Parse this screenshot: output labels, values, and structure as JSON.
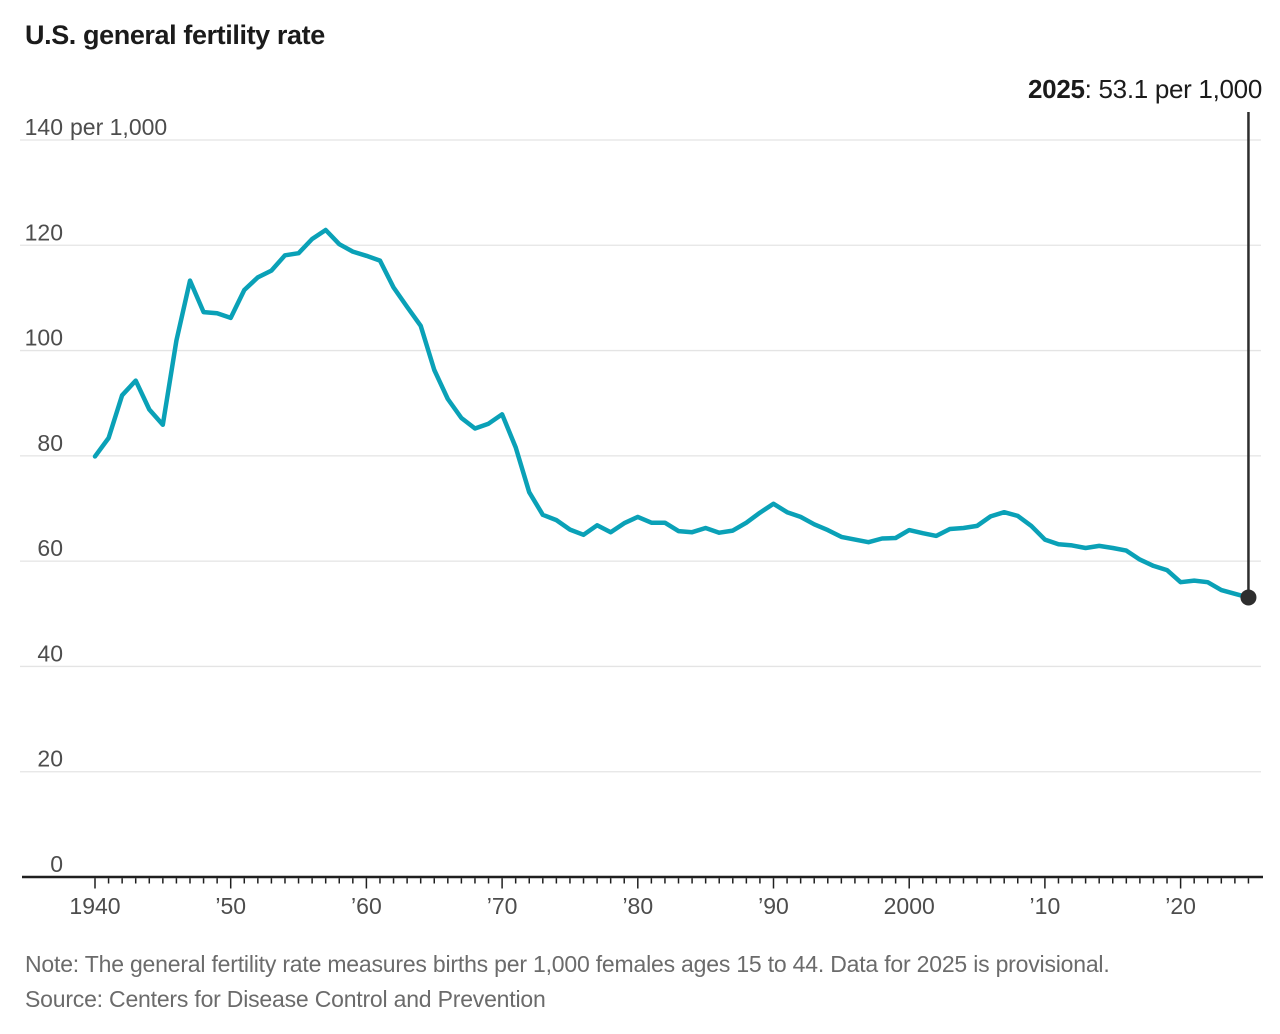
{
  "title": "U.S. general fertility rate",
  "annotation": {
    "year": "2025",
    "rest": ": 53.1 per 1,000"
  },
  "note": "Note: The general fertility rate measures births per 1,000 females ages 15 to 44. Data for 2025 is provisional.",
  "source": "Source: Centers for Disease Control and Prevention",
  "colors": {
    "line": "#0aa1b7",
    "marker": "#2e2e2e",
    "annotation_line": "#2e2e2e",
    "grid": "#e4e4e4",
    "axis": "#1f1f1f",
    "tick_label": "#4d4d4d",
    "title_text": "#1b1b1b",
    "note_text": "#6b6b6b"
  },
  "chart_data": {
    "type": "line",
    "title": "U.S. general fertility rate",
    "ylabel": "per 1,000",
    "ylim": [
      0,
      140
    ],
    "ytick_values": [
      0,
      20,
      40,
      60,
      80,
      100,
      120,
      140
    ],
    "ytick_top_unit": "per 1,000",
    "xlim": [
      1940,
      2025
    ],
    "grid": "horizontal",
    "legend_position": "none",
    "xticks": [
      {
        "year": 1940,
        "label": "1940"
      },
      {
        "year": 1950,
        "label": "’50"
      },
      {
        "year": 1960,
        "label": "’60"
      },
      {
        "year": 1970,
        "label": "’70"
      },
      {
        "year": 1980,
        "label": "’80"
      },
      {
        "year": 1990,
        "label": "’90"
      },
      {
        "year": 2000,
        "label": "2000"
      },
      {
        "year": 2010,
        "label": "’10"
      },
      {
        "year": 2020,
        "label": "’20"
      }
    ],
    "minor_tick_every_year": true,
    "endpoint": {
      "year": 2025,
      "value": 53.1,
      "label": "2025: 53.1 per 1,000"
    },
    "x": [
      1940,
      1941,
      1942,
      1943,
      1944,
      1945,
      1946,
      1947,
      1948,
      1949,
      1950,
      1951,
      1952,
      1953,
      1954,
      1955,
      1956,
      1957,
      1958,
      1959,
      1960,
      1961,
      1962,
      1963,
      1964,
      1965,
      1966,
      1967,
      1968,
      1969,
      1970,
      1971,
      1972,
      1973,
      1974,
      1975,
      1976,
      1977,
      1978,
      1979,
      1980,
      1981,
      1982,
      1983,
      1984,
      1985,
      1986,
      1987,
      1988,
      1989,
      1990,
      1991,
      1992,
      1993,
      1994,
      1995,
      1996,
      1997,
      1998,
      1999,
      2000,
      2001,
      2002,
      2003,
      2004,
      2005,
      2006,
      2007,
      2008,
      2009,
      2010,
      2011,
      2012,
      2013,
      2014,
      2015,
      2016,
      2017,
      2018,
      2019,
      2020,
      2021,
      2022,
      2023,
      2024,
      2025
    ],
    "values": [
      79.9,
      83.4,
      91.5,
      94.3,
      88.8,
      85.9,
      101.9,
      113.3,
      107.3,
      107.1,
      106.2,
      111.5,
      113.9,
      115.2,
      118.1,
      118.5,
      121.2,
      122.9,
      120.2,
      118.8,
      118.0,
      117.1,
      112.0,
      108.3,
      104.7,
      96.3,
      90.8,
      87.2,
      85.2,
      86.1,
      87.9,
      81.6,
      73.1,
      68.8,
      67.8,
      66.0,
      65.0,
      66.8,
      65.5,
      67.2,
      68.4,
      67.3,
      67.3,
      65.7,
      65.5,
      66.3,
      65.4,
      65.8,
      67.3,
      69.2,
      70.9,
      69.3,
      68.4,
      67.0,
      65.9,
      64.6,
      64.1,
      63.6,
      64.3,
      64.4,
      65.9,
      65.3,
      64.8,
      66.1,
      66.3,
      66.7,
      68.5,
      69.3,
      68.6,
      66.7,
      64.1,
      63.2,
      63.0,
      62.5,
      62.9,
      62.5,
      62.0,
      60.3,
      59.1,
      58.3,
      56.0,
      56.3,
      56.0,
      54.5,
      53.8,
      53.1
    ]
  }
}
